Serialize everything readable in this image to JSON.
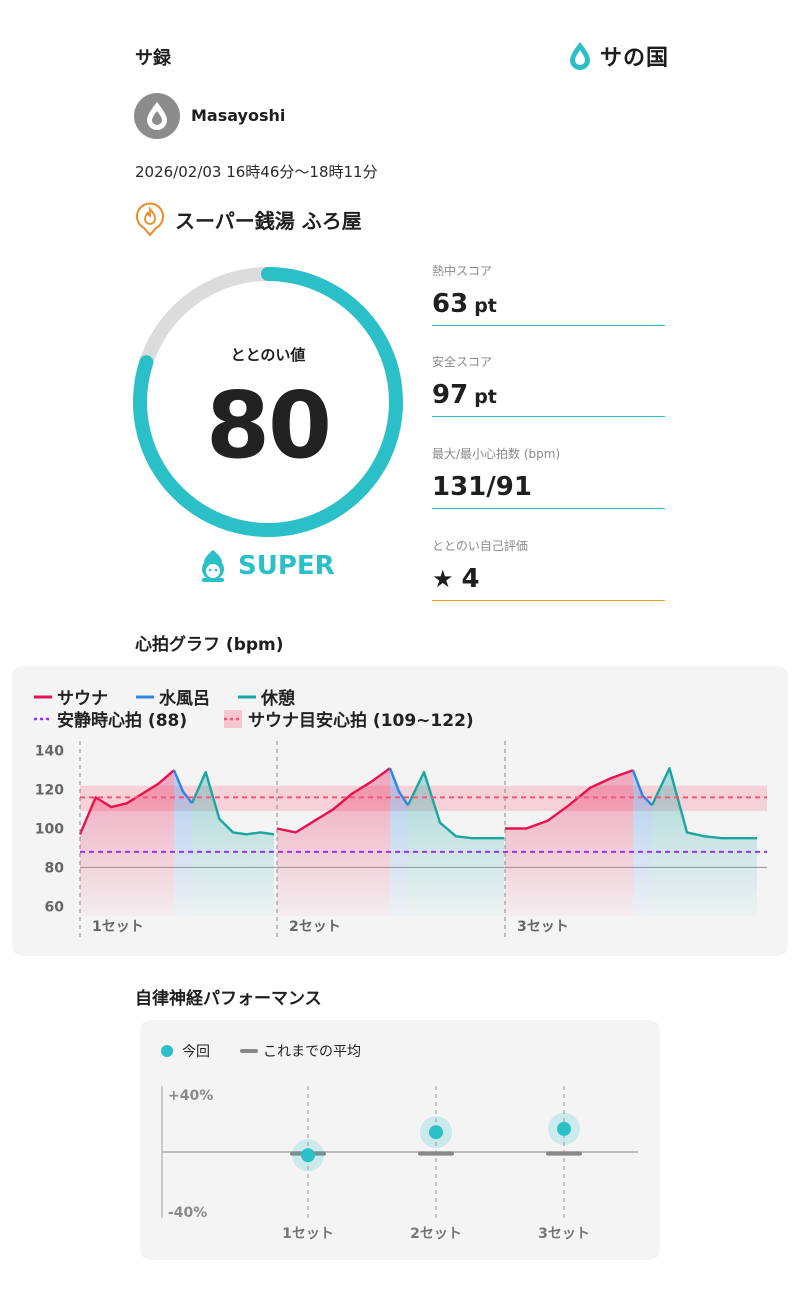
{
  "header": {
    "title": "サ録",
    "logo_text": "サの国"
  },
  "user": {
    "name": "Masayoshi"
  },
  "session": {
    "datetime": "2026/02/03 16時46分〜18時11分"
  },
  "facility": {
    "name": "スーパー銭湯 ふろ屋"
  },
  "totonoi": {
    "label": "ととのい値",
    "value": "80",
    "max": 100,
    "rank": "SUPER"
  },
  "stats": [
    {
      "label": "熱中スコア",
      "value": "63",
      "unit": "pt"
    },
    {
      "label": "安全スコア",
      "value": "97",
      "unit": "pt"
    },
    {
      "label": "最大/最小心拍数 (bpm)",
      "value": "131/91",
      "unit": ""
    },
    {
      "label": "ととのい自己評価",
      "value": "4",
      "unit": ""
    }
  ],
  "colors": {
    "sauna": "#e8124f",
    "water": "#2c86e6",
    "rest": "#1aa6a0",
    "accent": "#2bc0c8",
    "resting": "#9b30ff",
    "orange": "#f0a020"
  },
  "heart_chart": {
    "title": "心拍グラフ (bpm)",
    "legend": {
      "sauna": "サウナ",
      "water": "水風呂",
      "rest": "休憩",
      "resting": "安静時心拍 (88)",
      "target": "サウナ目安心拍 (109~122)"
    },
    "y_ticks": [
      "140",
      "120",
      "100",
      "80",
      "60"
    ],
    "sets": [
      "1セット",
      "2セット",
      "3セット"
    ]
  },
  "chart_data": [
    {
      "type": "line",
      "title": "心拍グラフ (bpm)",
      "ylabel": "bpm",
      "ylim": [
        55,
        145
      ],
      "y_ticks": [
        140,
        120,
        100,
        80,
        60
      ],
      "resting_hr": 88,
      "target_range": [
        109,
        122
      ],
      "sets": [
        "1セット",
        "2セット",
        "3セット"
      ],
      "series": [
        {
          "name": "サウナ",
          "segments": [
            [
              97,
              116,
              111,
              113,
              118,
              123,
              130
            ],
            [
              100,
              98,
              104,
              110,
              118,
              124,
              131
            ],
            [
              100,
              100,
              104,
              112,
              121,
              126,
              130
            ]
          ]
        },
        {
          "name": "水風呂",
          "segments": [
            [
              130,
              119,
              113
            ],
            [
              131,
              119,
              112
            ],
            [
              130,
              117,
              112
            ]
          ]
        },
        {
          "name": "休憩",
          "segments": [
            [
              113,
              129,
              105,
              98,
              97,
              98,
              97
            ],
            [
              112,
              129,
              103,
              96,
              95,
              95,
              95
            ],
            [
              112,
              131,
              98,
              96,
              95,
              95,
              95
            ]
          ]
        }
      ]
    },
    {
      "type": "scatter",
      "title": "自律神経パフォーマンス",
      "categories": [
        "1セット",
        "2セット",
        "3セット"
      ],
      "ylim": [
        -40,
        40
      ],
      "series": [
        {
          "name": "今回",
          "values": [
            -2,
            12,
            14
          ]
        },
        {
          "name": "これまでの平均",
          "values": [
            -1,
            -1,
            -1
          ]
        }
      ]
    }
  ],
  "autonomic": {
    "title": "自律神経パフォーマンス",
    "legend": {
      "current": "今回",
      "average": "これまでの平均"
    },
    "y_top": "+40%",
    "y_bottom": "-40%",
    "sets": [
      "1セット",
      "2セット",
      "3セット"
    ]
  }
}
